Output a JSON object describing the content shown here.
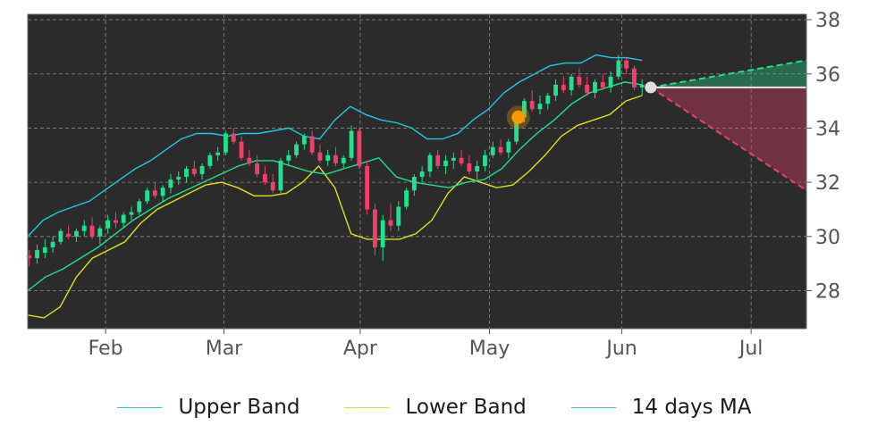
{
  "chart_data": {
    "type": "candlestick",
    "x_tick_labels": [
      "Feb",
      "Mar",
      "Apr",
      "May",
      "Jun",
      "Jul"
    ],
    "y_ticks": [
      28,
      30,
      32,
      34,
      36,
      38
    ],
    "ylim": [
      26.6,
      38.2
    ],
    "y_axis_side": "right",
    "grid": true,
    "legend_position": "bottom",
    "colors": {
      "background": "#2b2b2b",
      "upper_band": "#22c8e8",
      "lower_band": "#e0e020",
      "ma14": "#22e08c",
      "candle_up": "#22e08c",
      "candle_down": "#f0406a",
      "forecast_up": "#22e08c",
      "forecast_down": "#f0406a",
      "marker_orange": "#ff9800",
      "marker_white": "#e0e0e0"
    },
    "legend": [
      {
        "label": "Upper Band",
        "color": "#22c8e8"
      },
      {
        "label": "Lower Band",
        "color": "#e0e020"
      },
      {
        "label": "14 days MA",
        "color": "#22e08c"
      }
    ],
    "ohlc": [
      [
        29.3,
        29.5,
        28.9,
        29.2
      ],
      [
        29.2,
        29.7,
        29.0,
        29.5
      ],
      [
        29.4,
        29.9,
        29.2,
        29.6
      ],
      [
        29.6,
        30.0,
        29.4,
        29.8
      ],
      [
        29.8,
        30.3,
        29.7,
        30.2
      ],
      [
        30.1,
        30.4,
        29.9,
        30.0
      ],
      [
        30.0,
        30.3,
        29.8,
        30.2
      ],
      [
        30.2,
        30.6,
        30.0,
        30.4
      ],
      [
        30.4,
        30.7,
        29.9,
        30.0
      ],
      [
        30.0,
        30.4,
        29.7,
        30.3
      ],
      [
        30.3,
        30.8,
        30.1,
        30.6
      ],
      [
        30.6,
        30.9,
        30.3,
        30.5
      ],
      [
        30.5,
        30.9,
        30.3,
        30.8
      ],
      [
        30.8,
        31.1,
        30.6,
        30.9
      ],
      [
        30.9,
        31.4,
        30.8,
        31.3
      ],
      [
        31.3,
        31.8,
        31.2,
        31.7
      ],
      [
        31.7,
        32.0,
        31.4,
        31.5
      ],
      [
        31.5,
        31.9,
        31.3,
        31.8
      ],
      [
        31.8,
        32.3,
        31.6,
        32.1
      ],
      [
        32.1,
        32.4,
        31.9,
        32.2
      ],
      [
        32.2,
        32.6,
        32.0,
        32.5
      ],
      [
        32.5,
        32.8,
        32.2,
        32.3
      ],
      [
        32.3,
        32.7,
        32.1,
        32.6
      ],
      [
        32.6,
        33.1,
        32.5,
        33.0
      ],
      [
        33.0,
        33.3,
        32.8,
        33.1
      ],
      [
        33.1,
        33.9,
        33.0,
        33.8
      ],
      [
        33.8,
        34.0,
        33.4,
        33.5
      ],
      [
        33.5,
        33.7,
        32.8,
        32.9
      ],
      [
        32.9,
        33.2,
        32.6,
        32.7
      ],
      [
        32.7,
        33.0,
        32.2,
        32.3
      ],
      [
        32.3,
        32.6,
        31.9,
        32.0
      ],
      [
        32.0,
        32.3,
        31.6,
        31.7
      ],
      [
        31.7,
        32.9,
        31.6,
        32.8
      ],
      [
        32.8,
        33.2,
        32.6,
        33.0
      ],
      [
        33.0,
        33.5,
        32.9,
        33.4
      ],
      [
        33.4,
        33.8,
        33.2,
        33.7
      ],
      [
        33.7,
        33.9,
        33.0,
        33.1
      ],
      [
        33.1,
        33.4,
        32.7,
        32.8
      ],
      [
        32.8,
        33.2,
        32.6,
        33.0
      ],
      [
        33.0,
        33.3,
        32.6,
        32.7
      ],
      [
        32.7,
        33.0,
        32.5,
        32.9
      ],
      [
        32.9,
        34.1,
        32.8,
        33.9
      ],
      [
        33.9,
        34.0,
        32.5,
        32.6
      ],
      [
        32.6,
        32.8,
        30.8,
        31.0
      ],
      [
        31.0,
        31.2,
        29.3,
        29.6
      ],
      [
        29.6,
        30.8,
        29.1,
        30.6
      ],
      [
        30.6,
        31.2,
        30.2,
        30.4
      ],
      [
        30.4,
        31.3,
        30.2,
        31.1
      ],
      [
        31.1,
        31.8,
        31.0,
        31.7
      ],
      [
        31.7,
        32.3,
        31.5,
        32.2
      ],
      [
        32.2,
        32.6,
        32.0,
        32.4
      ],
      [
        32.4,
        33.1,
        32.2,
        33.0
      ],
      [
        33.0,
        33.2,
        32.5,
        32.6
      ],
      [
        32.6,
        33.0,
        32.3,
        32.8
      ],
      [
        32.8,
        33.1,
        32.5,
        32.9
      ],
      [
        32.9,
        33.2,
        32.6,
        32.7
      ],
      [
        32.7,
        33.0,
        32.3,
        32.4
      ],
      [
        32.4,
        32.8,
        32.1,
        32.6
      ],
      [
        32.6,
        33.2,
        32.4,
        33.0
      ],
      [
        33.0,
        33.5,
        32.9,
        33.3
      ],
      [
        33.3,
        33.6,
        33.0,
        33.1
      ],
      [
        33.1,
        33.6,
        32.9,
        33.5
      ],
      [
        33.5,
        34.6,
        33.4,
        34.4
      ],
      [
        34.4,
        35.1,
        34.2,
        35.0
      ],
      [
        35.0,
        35.4,
        34.6,
        34.7
      ],
      [
        34.7,
        35.2,
        34.5,
        34.9
      ],
      [
        34.9,
        35.3,
        34.7,
        35.2
      ],
      [
        35.2,
        35.8,
        35.0,
        35.6
      ],
      [
        35.6,
        35.9,
        35.3,
        35.4
      ],
      [
        35.4,
        36.0,
        35.2,
        35.9
      ],
      [
        35.9,
        36.2,
        35.5,
        35.6
      ],
      [
        35.6,
        35.9,
        35.2,
        35.3
      ],
      [
        35.3,
        35.8,
        35.1,
        35.7
      ],
      [
        35.7,
        36.0,
        35.4,
        35.5
      ],
      [
        35.5,
        36.1,
        35.3,
        35.9
      ],
      [
        35.9,
        36.7,
        35.8,
        36.5
      ],
      [
        36.5,
        36.6,
        36.0,
        36.2
      ],
      [
        36.2,
        36.3,
        35.4,
        35.5
      ],
      [
        35.5,
        35.8,
        35.2,
        35.6
      ]
    ],
    "upper_band": [
      30.0,
      30.6,
      30.9,
      31.1,
      31.3,
      31.7,
      32.1,
      32.5,
      32.8,
      33.2,
      33.6,
      33.8,
      33.8,
      33.7,
      33.8,
      33.8,
      33.9,
      34.0,
      33.7,
      33.6,
      34.3,
      34.8,
      34.5,
      34.3,
      34.2,
      34.0,
      33.6,
      33.6,
      33.8,
      34.3,
      34.7,
      35.3,
      35.7,
      36.0,
      36.3,
      36.4,
      36.4,
      36.7,
      36.6,
      36.6,
      36.5
    ],
    "lower_band": [
      27.1,
      27.0,
      27.4,
      28.5,
      29.2,
      29.5,
      29.8,
      30.5,
      31.0,
      31.3,
      31.6,
      31.9,
      32.0,
      31.8,
      31.5,
      31.5,
      31.6,
      32.0,
      32.6,
      31.8,
      30.1,
      29.9,
      29.9,
      29.9,
      30.1,
      30.6,
      31.6,
      32.2,
      32.0,
      31.8,
      31.9,
      32.4,
      33.0,
      33.7,
      34.1,
      34.3,
      34.5,
      35.0,
      35.2
    ],
    "ma14": [
      28.0,
      28.5,
      28.8,
      29.2,
      29.6,
      30.1,
      30.6,
      31.0,
      31.4,
      31.7,
      32.0,
      32.3,
      32.6,
      32.8,
      32.8,
      32.6,
      32.4,
      32.3,
      32.5,
      32.7,
      32.9,
      32.2,
      32.0,
      31.9,
      31.8,
      32.0,
      32.1,
      32.5,
      33.2,
      33.8,
      34.3,
      34.9,
      35.3,
      35.5,
      35.7,
      35.6
    ],
    "forecast": {
      "start": 35.5,
      "upper_end": 36.5,
      "lower_end": 31.7
    },
    "markers": [
      {
        "type": "orange",
        "y": 34.4
      },
      {
        "type": "white",
        "y": 35.5
      }
    ]
  }
}
